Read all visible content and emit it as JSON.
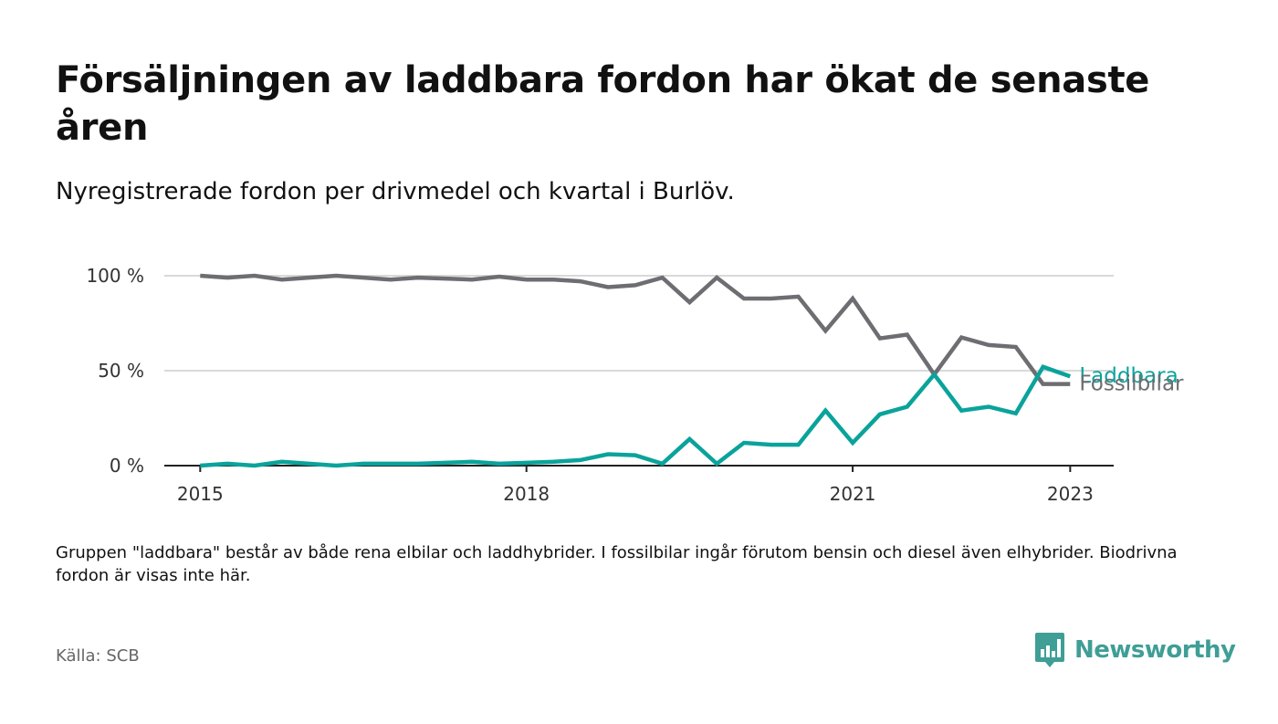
{
  "title": "Försäljningen av laddbara fordon har ökat de senaste åren",
  "subtitle": "Nyregistrerade fordon per drivmedel och kvartal i Burlöv.",
  "note": "Gruppen \"laddbara\" består av både rena elbilar och laddhybrider. I fossilbilar ingår förutom bensin och diesel även elhybrider. Biodrivna fordon är visas inte här.",
  "source": "Källa: SCB",
  "brand": "Newsworthy",
  "colors": {
    "laddbara": "#0aa39b",
    "fossilbilar": "#6e6d72",
    "gridline": "#d9d9d9",
    "axis": "#222222",
    "brand": "#3f9e96"
  },
  "chart_data": {
    "type": "line",
    "title": "Försäljningen av laddbara fordon har ökat de senaste åren",
    "xlabel": "",
    "ylabel": "",
    "ylim": [
      0,
      100
    ],
    "yticks": [
      {
        "value": 0,
        "label": "0 %"
      },
      {
        "value": 50,
        "label": "50 %"
      },
      {
        "value": 100,
        "label": "100 %"
      }
    ],
    "xticks": [
      {
        "value": 2015,
        "label": "2015"
      },
      {
        "value": 2018,
        "label": "2018"
      },
      {
        "value": 2021,
        "label": "2021"
      },
      {
        "value": 2023,
        "label": "2023"
      }
    ],
    "grid": true,
    "legend": "direct labels at line ends",
    "x": [
      2015.0,
      2015.25,
      2015.5,
      2015.75,
      2016.0,
      2016.25,
      2016.5,
      2016.75,
      2017.0,
      2017.25,
      2017.5,
      2017.75,
      2018.0,
      2018.25,
      2018.5,
      2018.75,
      2019.0,
      2019.25,
      2019.5,
      2019.75,
      2020.0,
      2020.25,
      2020.5,
      2020.75,
      2021.0,
      2021.25,
      2021.5,
      2021.75,
      2022.0,
      2022.25,
      2022.5,
      2022.75,
      2023.0
    ],
    "series": [
      {
        "name": "Fossilbilar",
        "color": "#6e6d72",
        "values": [
          100,
          99,
          100,
          98,
          99,
          100,
          99,
          98,
          99,
          98.5,
          98,
          99.5,
          98,
          98,
          97,
          94,
          95,
          99,
          86,
          99,
          88,
          88,
          89,
          71,
          88,
          67,
          69,
          48,
          67.5,
          63.5,
          62.5,
          43,
          43
        ]
      },
      {
        "name": "Laddbara",
        "color": "#0aa39b",
        "values": [
          0,
          1,
          0,
          2,
          1,
          0,
          1,
          1,
          1,
          1.5,
          2,
          1,
          1.5,
          2,
          3,
          6,
          5.5,
          1,
          14,
          1,
          12,
          11,
          11,
          29,
          12,
          27,
          31,
          48,
          29,
          31,
          27.5,
          52,
          47
        ]
      }
    ]
  }
}
